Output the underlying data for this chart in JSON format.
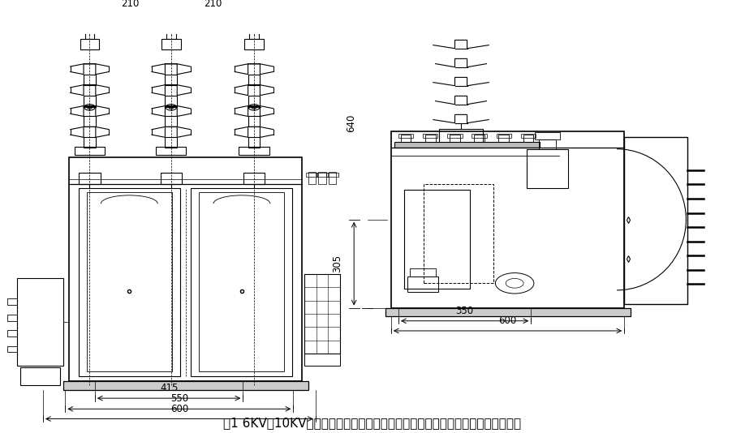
{
  "title": "图1 6KV、10KV三相四线油浸式高压电力计量箱（三相三元件）外形及安装尺寸图",
  "bg_color": "#ffffff",
  "line_color": "#000000",
  "dim_color": "#000000",
  "title_fontsize": 11,
  "dim_fontsize": 9
}
